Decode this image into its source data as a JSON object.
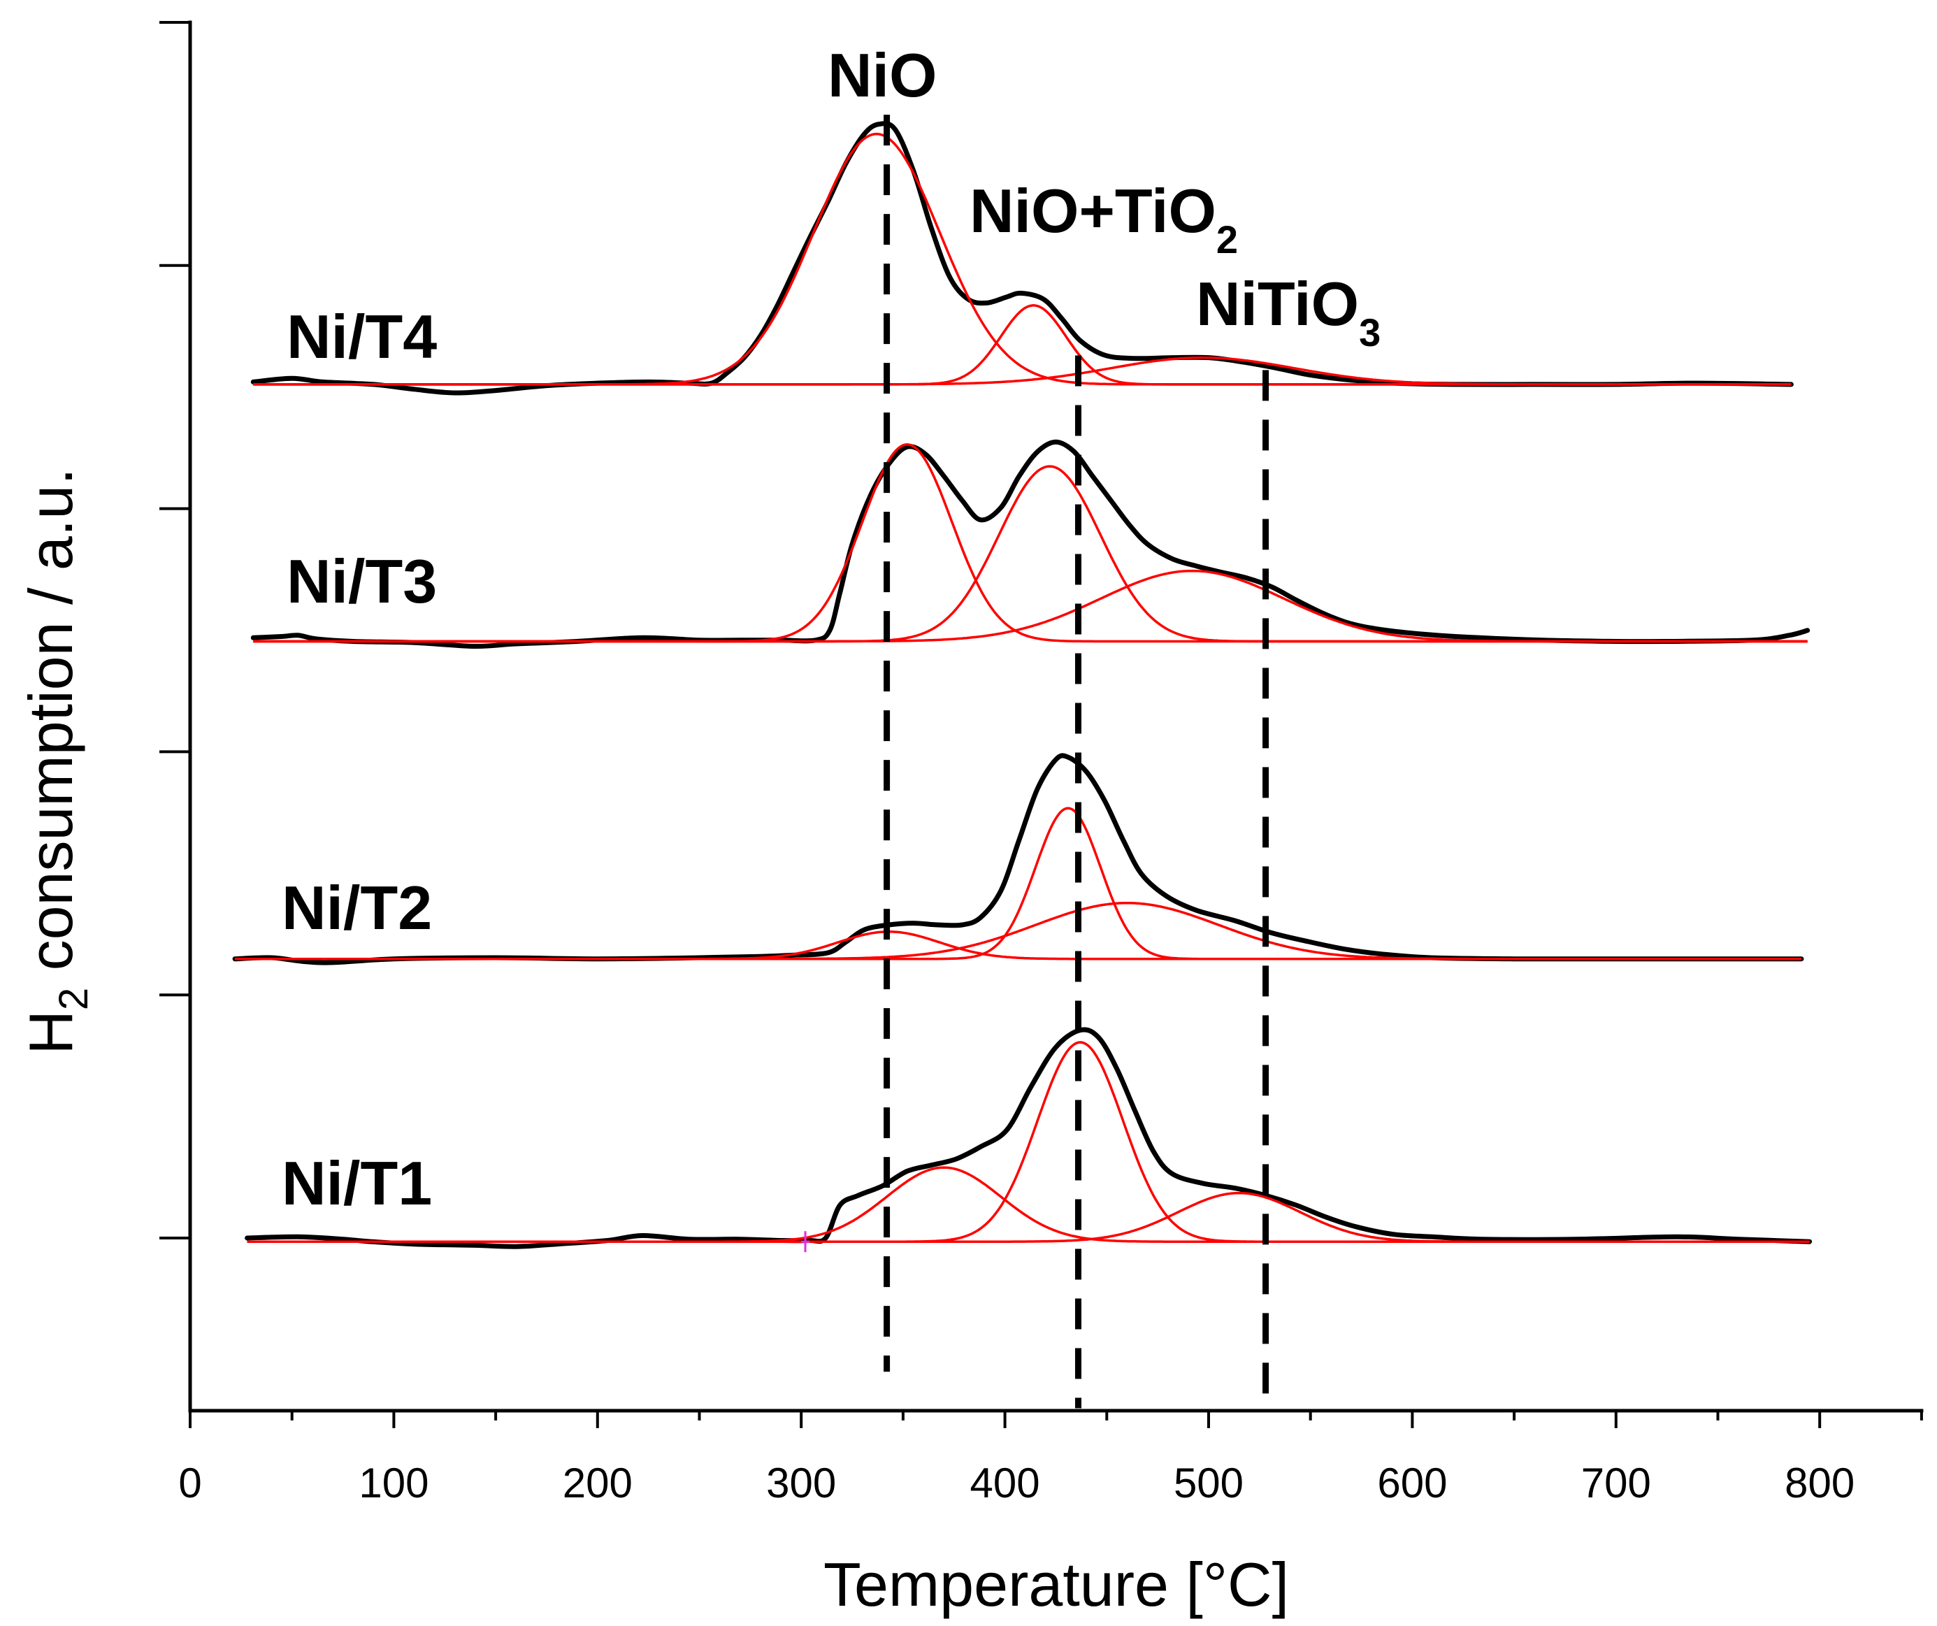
{
  "chart_data": {
    "type": "line",
    "xlabel": "Temperature [°C]",
    "ylabel": {
      "text": "H",
      "sub": "2",
      "rest": " consumption / a.u."
    },
    "xlim": [
      0,
      850
    ],
    "ylim": [
      -0.71,
      5
    ],
    "xticks": [
      0,
      100,
      200,
      300,
      400,
      500,
      600,
      700,
      800
    ],
    "xtick_labels": [
      "0",
      "100",
      "200",
      "300",
      "400",
      "500",
      "600",
      "700",
      "800"
    ],
    "xminor_ticks": [
      50,
      150,
      250,
      350,
      450,
      550,
      650,
      750,
      850
    ],
    "yticks": [
      0,
      1,
      2,
      3,
      4,
      5
    ],
    "grid": false,
    "colors": {
      "measured": "#000000",
      "fit": "#ff0000",
      "reference": "#000000",
      "axis": "#000000",
      "marker": "#e030e0"
    },
    "series": [
      {
        "name": "Ni/T4",
        "offset": 3.511,
        "range": [
          31,
          786
        ],
        "measured": [
          [
            31,
            0.01
          ],
          [
            50,
            0.025
          ],
          [
            65,
            0.01
          ],
          [
            90,
            0.0
          ],
          [
            110,
            -0.02
          ],
          [
            130,
            -0.035
          ],
          [
            150,
            -0.025
          ],
          [
            175,
            -0.005
          ],
          [
            200,
            0.005
          ],
          [
            225,
            0.01
          ],
          [
            245,
            0.005
          ],
          [
            256,
            0.005
          ],
          [
            264,
            0.05
          ],
          [
            272,
            0.11
          ],
          [
            280,
            0.2
          ],
          [
            288,
            0.32
          ],
          [
            296,
            0.46
          ],
          [
            304,
            0.6
          ],
          [
            313,
            0.75
          ],
          [
            322,
            0.91
          ],
          [
            331,
            1.03
          ],
          [
            338,
            1.07
          ],
          [
            346,
            1.05
          ],
          [
            355,
            0.88
          ],
          [
            364,
            0.64
          ],
          [
            373,
            0.44
          ],
          [
            382,
            0.35
          ],
          [
            391,
            0.335
          ],
          [
            401,
            0.36
          ],
          [
            408,
            0.375
          ],
          [
            419,
            0.35
          ],
          [
            428,
            0.27
          ],
          [
            437,
            0.18
          ],
          [
            449,
            0.12
          ],
          [
            464,
            0.107
          ],
          [
            482,
            0.11
          ],
          [
            500,
            0.11
          ],
          [
            513,
            0.097
          ],
          [
            531,
            0.071
          ],
          [
            549,
            0.04
          ],
          [
            567,
            0.02
          ],
          [
            591,
            0.005
          ],
          [
            620,
            0.0
          ],
          [
            660,
            0.0
          ],
          [
            700,
            0.0
          ],
          [
            740,
            0.005
          ],
          [
            786,
            0.0
          ]
        ],
        "fit_peaks": [
          {
            "center": 337,
            "height": 1.03,
            "sigma": 31
          },
          {
            "center": 414,
            "height": 0.325,
            "sigma": 16
          },
          {
            "center": 497,
            "height": 0.11,
            "sigma": 45
          }
        ]
      },
      {
        "name": "Ni/T3",
        "offset": 2.454,
        "range": [
          31,
          794
        ],
        "measured": [
          [
            31,
            0.015
          ],
          [
            45,
            0.02
          ],
          [
            53,
            0.025
          ],
          [
            62,
            0.01
          ],
          [
            80,
            0.0
          ],
          [
            110,
            -0.005
          ],
          [
            140,
            -0.02
          ],
          [
            160,
            -0.01
          ],
          [
            190,
            0.0
          ],
          [
            222,
            0.015
          ],
          [
            250,
            0.005
          ],
          [
            270,
            0.005
          ],
          [
            290,
            0.005
          ],
          [
            307,
            0.005
          ],
          [
            314,
            0.045
          ],
          [
            319,
            0.2
          ],
          [
            325,
            0.4
          ],
          [
            334,
            0.6
          ],
          [
            343,
            0.73
          ],
          [
            352,
            0.8
          ],
          [
            361,
            0.77
          ],
          [
            370,
            0.68
          ],
          [
            379,
            0.58
          ],
          [
            388,
            0.5
          ],
          [
            398,
            0.55
          ],
          [
            407,
            0.68
          ],
          [
            416,
            0.78
          ],
          [
            425,
            0.82
          ],
          [
            434,
            0.78
          ],
          [
            443,
            0.68
          ],
          [
            452,
            0.58
          ],
          [
            461,
            0.48
          ],
          [
            470,
            0.4
          ],
          [
            482,
            0.34
          ],
          [
            494,
            0.31
          ],
          [
            506,
            0.285
          ],
          [
            519,
            0.26
          ],
          [
            531,
            0.224
          ],
          [
            543,
            0.17
          ],
          [
            555,
            0.12
          ],
          [
            567,
            0.08
          ],
          [
            579,
            0.056
          ],
          [
            597,
            0.036
          ],
          [
            621,
            0.02
          ],
          [
            664,
            0.005
          ],
          [
            700,
            0.0
          ],
          [
            724,
            0.0
          ],
          [
            767,
            0.005
          ],
          [
            785,
            0.025
          ],
          [
            794,
            0.045
          ]
        ],
        "fit_peaks": [
          {
            "center": 352,
            "height": 0.81,
            "sigma": 22
          },
          {
            "center": 422,
            "height": 0.72,
            "sigma": 25
          },
          {
            "center": 492,
            "height": 0.29,
            "sigma": 45
          }
        ]
      },
      {
        "name": "Ni/T2",
        "offset": 1.148,
        "range": [
          22,
          791
        ],
        "measured": [
          [
            22,
            0.0
          ],
          [
            40,
            0.005
          ],
          [
            55,
            -0.01
          ],
          [
            70,
            -0.015
          ],
          [
            100,
            0.0
          ],
          [
            150,
            0.005
          ],
          [
            200,
            0.0
          ],
          [
            250,
            0.005
          ],
          [
            280,
            0.01
          ],
          [
            295,
            0.015
          ],
          [
            313,
            0.025
          ],
          [
            322,
            0.07
          ],
          [
            331,
            0.12
          ],
          [
            343,
            0.14
          ],
          [
            355,
            0.147
          ],
          [
            367,
            0.14
          ],
          [
            379,
            0.14
          ],
          [
            388,
            0.17
          ],
          [
            398,
            0.28
          ],
          [
            407,
            0.49
          ],
          [
            416,
            0.7
          ],
          [
            425,
            0.82
          ],
          [
            431,
            0.83
          ],
          [
            440,
            0.77
          ],
          [
            449,
            0.65
          ],
          [
            458,
            0.49
          ],
          [
            467,
            0.35
          ],
          [
            479,
            0.26
          ],
          [
            494,
            0.2
          ],
          [
            513,
            0.157
          ],
          [
            531,
            0.107
          ],
          [
            549,
            0.071
          ],
          [
            567,
            0.04
          ],
          [
            585,
            0.02
          ],
          [
            609,
            0.005
          ],
          [
            650,
            0.0
          ],
          [
            700,
            0.0
          ],
          [
            750,
            0.0
          ],
          [
            791,
            0.0
          ]
        ],
        "fit_peaks": [
          {
            "center": 343,
            "height": 0.112,
            "sigma": 25
          },
          {
            "center": 431,
            "height": 0.62,
            "sigma": 16
          },
          {
            "center": 460,
            "height": 0.23,
            "sigma": 45
          }
        ]
      },
      {
        "name": "Ni/T1",
        "offset": -0.015,
        "range": [
          28,
          795
        ],
        "measured": [
          [
            28,
            0.015
          ],
          [
            53,
            0.02
          ],
          [
            75,
            0.01
          ],
          [
            89,
            0.0
          ],
          [
            110,
            -0.01
          ],
          [
            140,
            -0.015
          ],
          [
            160,
            -0.02
          ],
          [
            180,
            -0.01
          ],
          [
            205,
            0.005
          ],
          [
            222,
            0.025
          ],
          [
            245,
            0.01
          ],
          [
            270,
            0.01
          ],
          [
            290,
            0.005
          ],
          [
            304,
            0.005
          ],
          [
            312,
            0.015
          ],
          [
            319,
            0.15
          ],
          [
            328,
            0.19
          ],
          [
            340,
            0.23
          ],
          [
            352,
            0.29
          ],
          [
            364,
            0.315
          ],
          [
            376,
            0.34
          ],
          [
            388,
            0.39
          ],
          [
            401,
            0.46
          ],
          [
            413,
            0.64
          ],
          [
            425,
            0.8
          ],
          [
            437,
            0.87
          ],
          [
            446,
            0.84
          ],
          [
            455,
            0.71
          ],
          [
            464,
            0.535
          ],
          [
            473,
            0.37
          ],
          [
            482,
            0.28
          ],
          [
            497,
            0.24
          ],
          [
            513,
            0.22
          ],
          [
            528,
            0.19
          ],
          [
            543,
            0.15
          ],
          [
            558,
            0.1
          ],
          [
            573,
            0.06
          ],
          [
            591,
            0.03
          ],
          [
            610,
            0.02
          ],
          [
            634,
            0.01
          ],
          [
            680,
            0.01
          ],
          [
            730,
            0.02
          ],
          [
            760,
            0.01
          ],
          [
            795,
            0.0
          ]
        ],
        "fit_peaks": [
          {
            "center": 370,
            "height": 0.305,
            "sigma": 28
          },
          {
            "center": 437,
            "height": 0.82,
            "sigma": 21
          },
          {
            "center": 515,
            "height": 0.2,
            "sigma": 30
          }
        ]
      }
    ],
    "annotations": [
      {
        "text": "NiO",
        "temperature": 342
      },
      {
        "text": "NiO+TiO",
        "sub": "2",
        "temperature": 436
      },
      {
        "text": "NiTiO",
        "sub": "3",
        "temperature": 528
      }
    ],
    "marker": {
      "series": 3,
      "temperature": 302
    }
  }
}
